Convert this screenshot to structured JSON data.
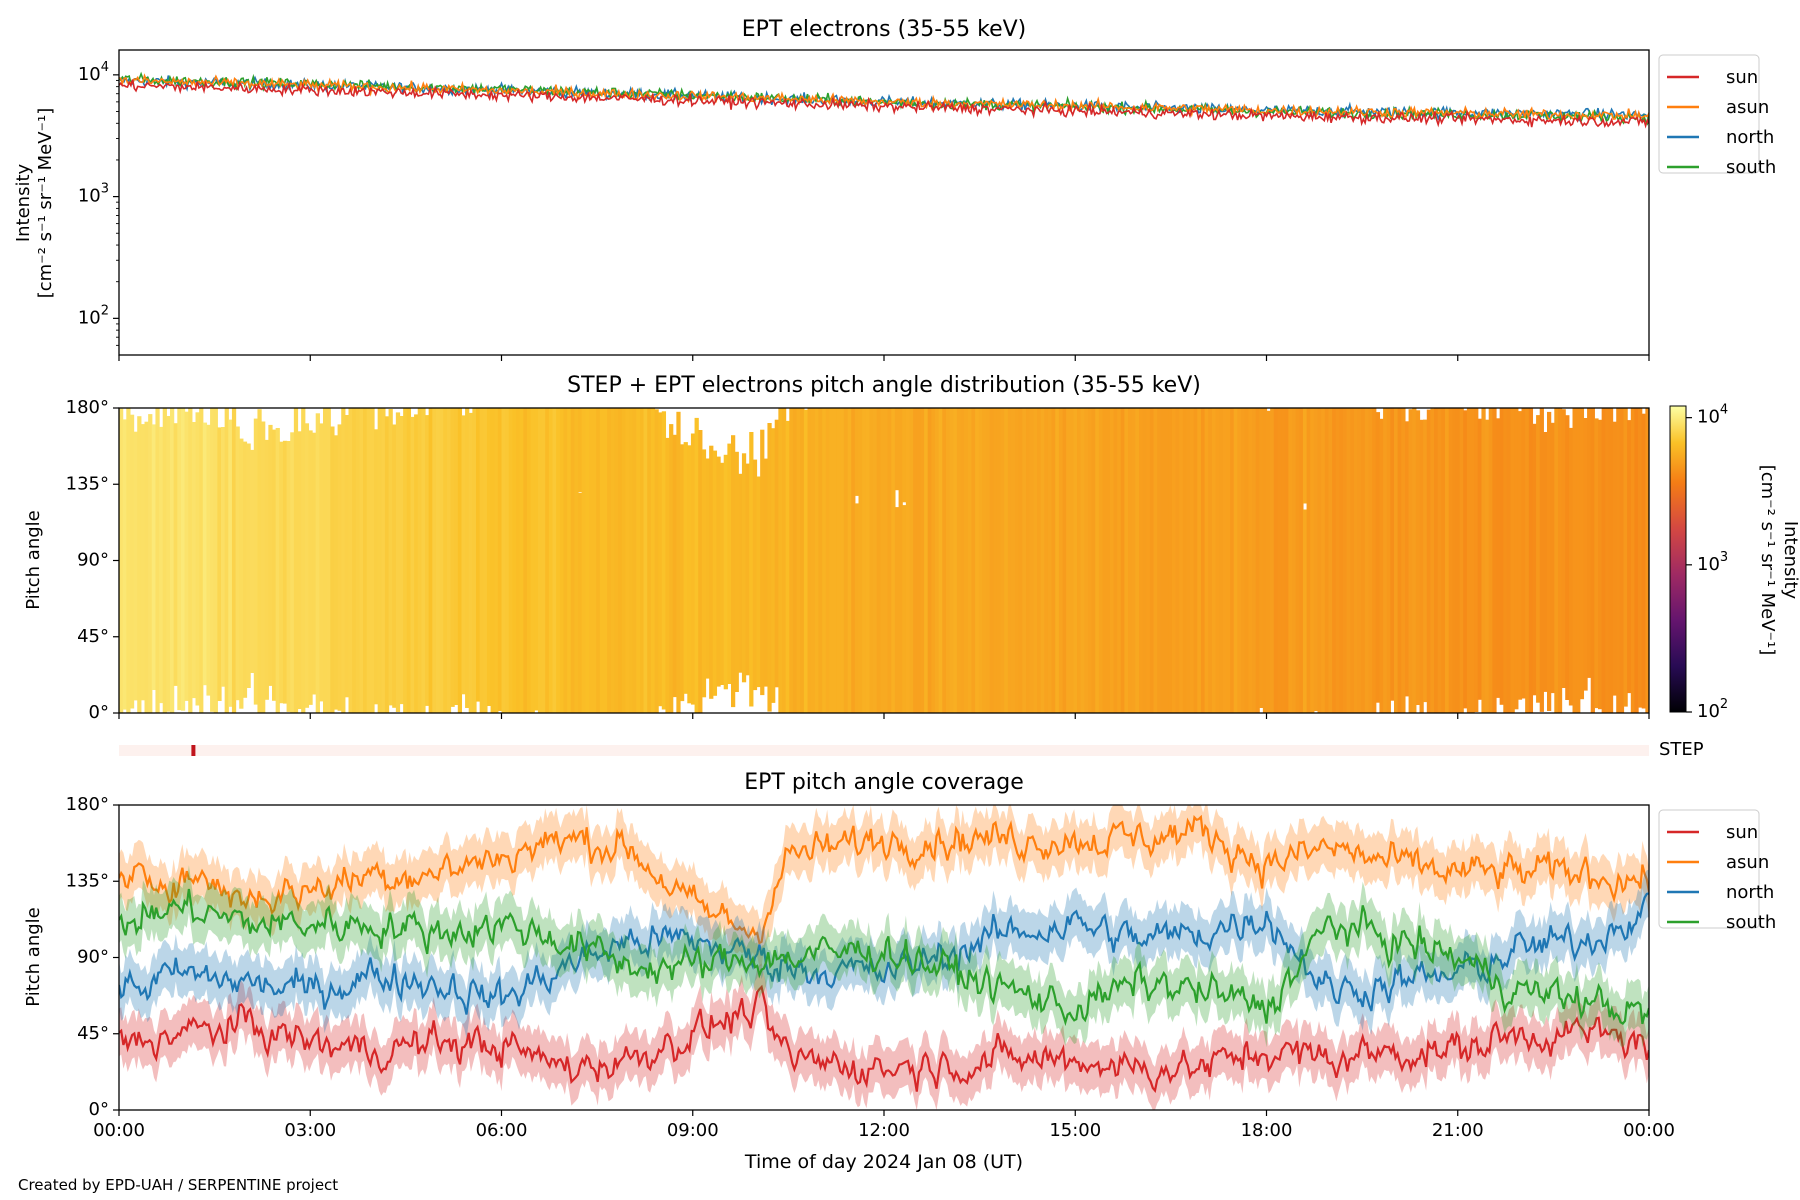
{
  "footer": "Created by EPD-UAH / SERPENTINE project",
  "colors": {
    "sun": "#d62728",
    "asun": "#ff7f0e",
    "north": "#1f77b4",
    "south": "#2ca02c",
    "step_band": "#fdf1ee",
    "step_mark": "#c0141c"
  },
  "chart_data": [
    {
      "type": "line",
      "title": "EPT electrons (35-55 keV)",
      "ylabel": "Intensity",
      "yunit": "[cm⁻² s⁻¹ sr⁻¹ MeV⁻¹]",
      "yscale": "log",
      "ylim": [
        50,
        16000
      ],
      "yticks": [
        {
          "v": 100,
          "m": "10",
          "e": "2"
        },
        {
          "v": 1000,
          "m": "10",
          "e": "3"
        },
        {
          "v": 10000,
          "m": "10",
          "e": "4"
        }
      ],
      "x_hours": [
        0,
        3,
        6,
        9,
        12,
        15,
        18,
        21,
        24
      ],
      "x_start": "2024-01-08 00:00",
      "x_end": "2024-01-09 00:00",
      "legend": [
        "sun",
        "asun",
        "north",
        "south"
      ],
      "series": [
        {
          "name": "sun",
          "trend": [
            [
              "00:00",
              8200
            ],
            [
              "06:00",
              6800
            ],
            [
              "12:00",
              5500
            ],
            [
              "18:00",
              4600
            ],
            [
              "24:00",
              4100
            ]
          ]
        },
        {
          "name": "asun",
          "trend": [
            [
              "00:00",
              9000
            ],
            [
              "06:00",
              7400
            ],
            [
              "12:00",
              6000
            ],
            [
              "18:00",
              5100
            ],
            [
              "24:00",
              4600
            ]
          ]
        },
        {
          "name": "north",
          "trend": [
            [
              "00:00",
              9000
            ],
            [
              "06:00",
              7500
            ],
            [
              "12:00",
              6000
            ],
            [
              "18:00",
              5100
            ],
            [
              "24:00",
              4700
            ]
          ]
        },
        {
          "name": "south",
          "trend": [
            [
              "00:00",
              9200
            ],
            [
              "06:00",
              7600
            ],
            [
              "12:00",
              6000
            ],
            [
              "18:00",
              5000
            ],
            [
              "24:00",
              4500
            ]
          ]
        }
      ]
    },
    {
      "type": "heatmap",
      "title": "STEP + EPT electrons pitch angle distribution (35-55 keV)",
      "ylabel": "Pitch angle",
      "ylim": [
        0,
        180
      ],
      "yticks": [
        "0°",
        "45°",
        "90°",
        "135°",
        "180°"
      ],
      "colorbar": {
        "label": "Intensity",
        "unit": "[cm⁻² s⁻¹ sr⁻¹ MeV⁻¹]",
        "scale": "log",
        "range": [
          100,
          12000
        ],
        "ticks": [
          {
            "v": 100,
            "m": "10",
            "e": "2"
          },
          {
            "v": 1000,
            "m": "10",
            "e": "3"
          },
          {
            "v": 10000,
            "m": "10",
            "e": "4"
          }
        ]
      },
      "intensity_trend": [
        [
          "00:00",
          9500
        ],
        [
          "06:00",
          7000
        ],
        [
          "12:00",
          5500
        ],
        [
          "18:00",
          4800
        ],
        [
          "24:00",
          4300
        ]
      ]
    },
    {
      "type": "band",
      "label": "STEP",
      "marks": [
        "01:10"
      ]
    },
    {
      "type": "line",
      "title": "EPT pitch angle coverage",
      "ylabel": "Pitch angle",
      "xlabel": "Time of day 2024 Jan 08 (UT)",
      "ylim": [
        0,
        180
      ],
      "yticks": [
        "0°",
        "45°",
        "90°",
        "135°",
        "180°"
      ],
      "xticks": [
        "00:00",
        "03:00",
        "06:00",
        "09:00",
        "12:00",
        "15:00",
        "18:00",
        "21:00",
        "00:00"
      ],
      "legend": [
        "sun",
        "asun",
        "north",
        "south"
      ],
      "series": [
        {
          "name": "sun",
          "values": [
            [
              0,
              40
            ],
            [
              1,
              45
            ],
            [
              2,
              50
            ],
            [
              3,
              40
            ],
            [
              4,
              35
            ],
            [
              5,
              40
            ],
            [
              6,
              38
            ],
            [
              7,
              25
            ],
            [
              8,
              30
            ],
            [
              9,
              45
            ],
            [
              10,
              60
            ],
            [
              10.5,
              30
            ],
            [
              12,
              25
            ],
            [
              14,
              30
            ],
            [
              15,
              30
            ],
            [
              16,
              25
            ],
            [
              17,
              25
            ],
            [
              18,
              35
            ],
            [
              19,
              30
            ],
            [
              20,
              35
            ],
            [
              21,
              35
            ],
            [
              22,
              45
            ],
            [
              23,
              45
            ],
            [
              24,
              40
            ]
          ]
        },
        {
          "name": "asun",
          "values": [
            [
              0,
              130
            ],
            [
              1,
              140
            ],
            [
              2,
              125
            ],
            [
              3,
              130
            ],
            [
              4,
              140
            ],
            [
              5,
              140
            ],
            [
              6,
              150
            ],
            [
              7,
              160
            ],
            [
              8,
              155
            ],
            [
              9,
              120
            ],
            [
              10,
              105
            ],
            [
              10.5,
              150
            ],
            [
              12,
              160
            ],
            [
              14,
              160
            ],
            [
              15,
              160
            ],
            [
              16,
              160
            ],
            [
              17,
              165
            ],
            [
              18,
              145
            ],
            [
              19,
              155
            ],
            [
              20,
              145
            ],
            [
              21,
              140
            ],
            [
              22,
              140
            ],
            [
              23,
              140
            ],
            [
              24,
              135
            ]
          ]
        },
        {
          "name": "north",
          "values": [
            [
              0,
              70
            ],
            [
              1,
              80
            ],
            [
              2,
              75
            ],
            [
              3,
              70
            ],
            [
              4,
              80
            ],
            [
              5,
              75
            ],
            [
              6,
              65
            ],
            [
              7,
              85
            ],
            [
              8,
              100
            ],
            [
              9,
              100
            ],
            [
              10,
              90
            ],
            [
              10.5,
              85
            ],
            [
              12,
              80
            ],
            [
              14,
              105
            ],
            [
              15,
              110
            ],
            [
              16,
              100
            ],
            [
              17,
              105
            ],
            [
              18,
              115
            ],
            [
              19,
              70
            ],
            [
              20,
              75
            ],
            [
              21,
              80
            ],
            [
              22,
              95
            ],
            [
              23,
              100
            ],
            [
              24,
              120
            ]
          ]
        },
        {
          "name": "south",
          "values": [
            [
              0,
              110
            ],
            [
              1,
              120
            ],
            [
              2,
              110
            ],
            [
              3,
              110
            ],
            [
              4,
              110
            ],
            [
              5,
              105
            ],
            [
              6,
              110
            ],
            [
              7,
              100
            ],
            [
              8,
              85
            ],
            [
              9,
              85
            ],
            [
              10,
              90
            ],
            [
              10.5,
              90
            ],
            [
              12,
              95
            ],
            [
              14,
              70
            ],
            [
              15,
              60
            ],
            [
              16,
              75
            ],
            [
              17,
              70
            ],
            [
              18,
              60
            ],
            [
              19,
              110
            ],
            [
              20,
              100
            ],
            [
              21,
              90
            ],
            [
              22,
              70
            ],
            [
              23,
              65
            ],
            [
              24,
              55
            ]
          ]
        }
      ]
    }
  ]
}
